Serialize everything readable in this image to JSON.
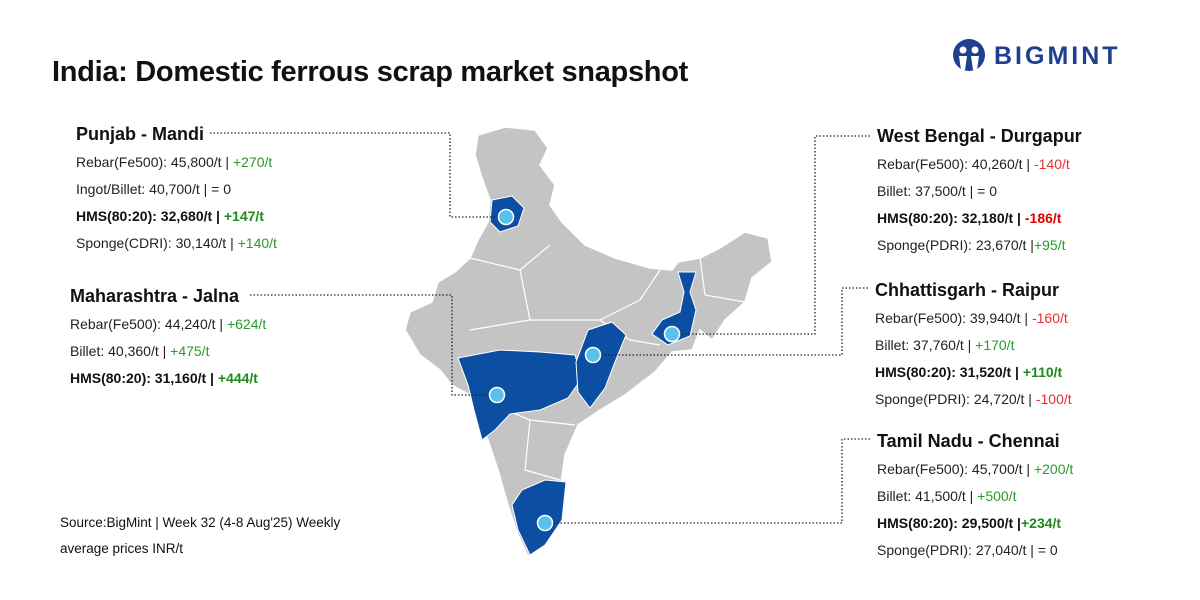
{
  "title": "India: Domestic ferrous scrap market snapshot",
  "logo": {
    "text": "BIGMINT",
    "color": "#1f3f8f"
  },
  "colors": {
    "map_land": "#c4c4c4",
    "highlight": "#0b4ea2",
    "marker": "#5bc0eb",
    "positive": "#2a9a2a",
    "negative": "#e53030"
  },
  "regions": [
    {
      "name": "Punjab - Mandi",
      "rows": [
        {
          "label": "Rebar(Fe500): 45,800/t | ",
          "change": "+270/t",
          "dir": "up",
          "bold": false
        },
        {
          "label": "Ingot/Billet: 40,700/t | = 0",
          "change": "",
          "dir": "",
          "bold": false
        },
        {
          "label": "HMS(80:20): 32,680/t | ",
          "change": "+147/t",
          "dir": "up",
          "bold": true
        },
        {
          "label": "Sponge(CDRI): 30,140/t | ",
          "change": "+140/t",
          "dir": "up",
          "bold": false
        }
      ]
    },
    {
      "name": "Maharashtra - Jalna",
      "rows": [
        {
          "label": "Rebar(Fe500): 44,240/t | ",
          "change": "+624/t",
          "dir": "up",
          "bold": false
        },
        {
          "label": "Billet: 40,360/t | ",
          "change": "+475/t",
          "dir": "up",
          "bold": false
        },
        {
          "label": "HMS(80:20): 31,160/t | ",
          "change": "+444/t",
          "dir": "up",
          "bold": true
        }
      ]
    },
    {
      "name": "West Bengal - Durgapur",
      "rows": [
        {
          "label": "Rebar(Fe500): 40,260/t | ",
          "change": "-140/t",
          "dir": "down",
          "bold": false
        },
        {
          "label": "Billet: 37,500/t | = 0",
          "change": "",
          "dir": "",
          "bold": false
        },
        {
          "label": "HMS(80:20): 32,180/t | ",
          "change": "-186/t",
          "dir": "down",
          "bold": true
        },
        {
          "label": "Sponge(PDRI): 23,670/t |",
          "change": "+95/t",
          "dir": "up",
          "bold": false
        }
      ]
    },
    {
      "name": "Chhattisgarh - Raipur",
      "rows": [
        {
          "label": "Rebar(Fe500): 39,940/t | ",
          "change": "-160/t",
          "dir": "down",
          "bold": false
        },
        {
          "label": "Billet: 37,760/t | ",
          "change": "+170/t",
          "dir": "up",
          "bold": false
        },
        {
          "label": "HMS(80:20): 31,520/t | ",
          "change": "+110/t",
          "dir": "up",
          "bold": true
        },
        {
          "label": "Sponge(PDRI): 24,720/t | ",
          "change": "-100/t",
          "dir": "down",
          "bold": false
        }
      ]
    },
    {
      "name": "Tamil Nadu - Chennai",
      "rows": [
        {
          "label": "Rebar(Fe500): 45,700/t | ",
          "change": "+200/t",
          "dir": "up",
          "bold": false
        },
        {
          "label": "Billet: 41,500/t | ",
          "change": "+500/t",
          "dir": "up",
          "bold": false
        },
        {
          "label": "HMS(80:20): 29,500/t |",
          "change": "+234/t",
          "dir": "up",
          "bold": true
        },
        {
          "label": "Sponge(PDRI): 27,040/t | = 0",
          "change": "",
          "dir": "",
          "bold": false
        }
      ]
    }
  ],
  "source": "Source:BigMint | Week 32 (4-8 Aug'25)  Weekly average prices INR/t"
}
